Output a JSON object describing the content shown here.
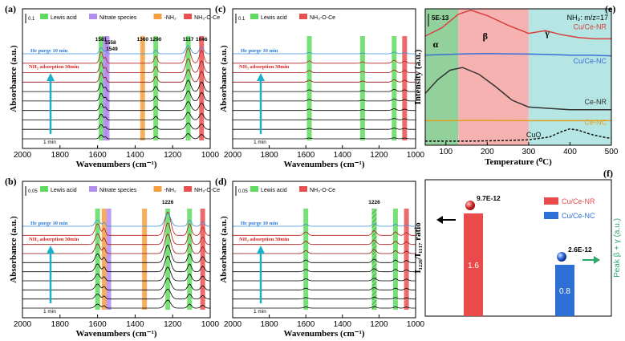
{
  "chart_data": [
    {
      "id": "a",
      "label": "(a)",
      "type": "line",
      "xlabel": "Wavenumbers (cm⁻¹)",
      "ylabel": "Absorbance (a.u.)",
      "xlim": [
        2000,
        1000
      ],
      "xticks": [
        "2000",
        "1800",
        "1600",
        "1400",
        "1200",
        "1000"
      ],
      "scale": "0.1",
      "legend": [
        {
          "name": "Lewis acid",
          "color": "#5fdc5f"
        },
        {
          "name": "Nitrate species",
          "color": "#b48cf0"
        },
        {
          "name": "-NH₂",
          "color": "#f5a040"
        },
        {
          "name": "NH₃-O-Ce",
          "color": "#e85050"
        }
      ],
      "bands": [
        {
          "x": 1581,
          "color": "#5fdc5f"
        },
        {
          "x": 1558,
          "color": "#b48cf0"
        },
        {
          "x": 1549,
          "color": "#b48cf0"
        },
        {
          "x": 1360,
          "color": "#f5a040"
        },
        {
          "x": 1290,
          "color": "#5fdc5f"
        },
        {
          "x": 1117,
          "color": "#5fdc5f"
        },
        {
          "x": 1046,
          "color": "#e85050"
        }
      ],
      "peak_labels": [
        "1581",
        "1558",
        "1549",
        "1360",
        "1290",
        "1117",
        "1046"
      ],
      "peaks": [
        {
          "x": 1581,
          "h": 1.0,
          "w": 12
        },
        {
          "x": 1558,
          "h": 0.5,
          "w": 8
        },
        {
          "x": 1290,
          "h": 0.6,
          "w": 12
        },
        {
          "x": 1117,
          "h": 1.3,
          "w": 18
        },
        {
          "x": 1046,
          "h": 1.1,
          "w": 16
        }
      ],
      "he_text": "He purge 10 min",
      "nh3_text": "NH₃ adsorption 30min",
      "time_text": "1 min",
      "n_curves": 10
    },
    {
      "id": "b",
      "label": "(b)",
      "type": "line",
      "xlabel": "Wavenumbers (cm⁻¹)",
      "ylabel": "Absorbance (a.u.)",
      "xlim": [
        2000,
        1000
      ],
      "xticks": [
        "2000",
        "1800",
        "1600",
        "1400",
        "1200",
        "1000"
      ],
      "scale": "0.05",
      "legend": [
        {
          "name": "Lewis acid",
          "color": "#5fdc5f"
        },
        {
          "name": "Nitrate species",
          "color": "#b48cf0"
        },
        {
          "name": "-NH₂",
          "color": "#f5a040"
        },
        {
          "name": "NH₃-O-Ce",
          "color": "#e85050"
        }
      ],
      "bands": [
        {
          "x": 1600,
          "color": "#5fdc5f"
        },
        {
          "x": 1565,
          "color": "#f5a040"
        },
        {
          "x": 1540,
          "color": "#b48cf0"
        },
        {
          "x": 1350,
          "color": "#f5a040"
        },
        {
          "x": 1226,
          "color": "#5fdc5f"
        },
        {
          "x": 1110,
          "color": "#5fdc5f"
        },
        {
          "x": 1040,
          "color": "#e85050"
        }
      ],
      "peak_labels": [
        "1226"
      ],
      "peaks": [
        {
          "x": 1600,
          "h": 1.0,
          "w": 18
        },
        {
          "x": 1565,
          "h": 0.6,
          "w": 10
        },
        {
          "x": 1226,
          "h": 2.0,
          "w": 22
        },
        {
          "x": 1110,
          "h": 1.0,
          "w": 14
        },
        {
          "x": 1040,
          "h": 0.7,
          "w": 14
        }
      ],
      "he_text": "He purge 10 min",
      "nh3_text": "NH₃ adsorption 30min",
      "time_text": "1 min",
      "n_curves": 10
    },
    {
      "id": "c",
      "label": "(c)",
      "type": "line",
      "xlabel": "Wavenumbers (cm⁻¹)",
      "ylabel": "Absorbance (a.u.)",
      "xlim": [
        2000,
        1000
      ],
      "xticks": [
        "2000",
        "1800",
        "1600",
        "1400",
        "1200",
        "1000"
      ],
      "scale": "0.1",
      "legend": [
        {
          "name": "Lewis acid",
          "color": "#5fdc5f"
        },
        {
          "name": "NH₃-O-Ce",
          "color": "#e85050"
        }
      ],
      "bands": [
        {
          "x": 1581,
          "color": "#5fdc5f"
        },
        {
          "x": 1290,
          "color": "#5fdc5f"
        },
        {
          "x": 1117,
          "color": "#5fdc5f"
        },
        {
          "x": 1060,
          "color": "#e85050"
        }
      ],
      "peak_labels": [],
      "peaks": [
        {
          "x": 1581,
          "h": 0.2,
          "w": 14
        },
        {
          "x": 1290,
          "h": 0.12,
          "w": 12
        },
        {
          "x": 1117,
          "h": 0.25,
          "w": 16
        },
        {
          "x": 1060,
          "h": 0.2,
          "w": 14
        }
      ],
      "he_text": "He purge 10 min",
      "nh3_text": "NH₃ adsorption 30min",
      "time_text": "1 min",
      "n_curves": 10
    },
    {
      "id": "d",
      "label": "(d)",
      "type": "line",
      "xlabel": "Wavenumbers (cm⁻¹)",
      "ylabel": "Absorbance (a.u.)",
      "xlim": [
        2000,
        1000
      ],
      "xticks": [
        "2000",
        "1800",
        "1600",
        "1400",
        "1200",
        "1000"
      ],
      "scale": "0.05",
      "legend": [
        {
          "name": "Lewis acid",
          "color": "#5fdc5f"
        },
        {
          "name": "NH₃-O-Ce",
          "color": "#e85050"
        }
      ],
      "bands": [
        {
          "x": 1600,
          "color": "#5fdc5f"
        },
        {
          "x": 1226,
          "color": "#5fdc5f"
        },
        {
          "x": 1110,
          "color": "#5fdc5f"
        },
        {
          "x": 1050,
          "color": "#e85050"
        }
      ],
      "peak_labels": [
        "1226"
      ],
      "peaks": [
        {
          "x": 1600,
          "h": 0.3,
          "w": 16
        },
        {
          "x": 1226,
          "h": 0.4,
          "w": 16
        },
        {
          "x": 1110,
          "h": 0.3,
          "w": 14
        },
        {
          "x": 1050,
          "h": 0.25,
          "w": 14
        }
      ],
      "he_text": "He purge 10 min",
      "nh3_text": "NH₃ adsorption 30min",
      "time_text": "1 min",
      "n_curves": 10
    },
    {
      "id": "e",
      "label": "(e)",
      "type": "line",
      "xlabel": "Temperature (⁰C)",
      "ylabel": "Intensity (a.u.)",
      "xlim": [
        50,
        500
      ],
      "xticks": [
        "100",
        "200",
        "300",
        "400",
        "500"
      ],
      "scale": "5E-13",
      "title": "NH₃: m/z=17",
      "regions": [
        {
          "name": "α",
          "from": 50,
          "to": 130,
          "color": "#7fc98a"
        },
        {
          "name": "β",
          "from": 130,
          "to": 300,
          "color": "#f4a3a3"
        },
        {
          "name": "γ",
          "from": 300,
          "to": 500,
          "color": "#a8e2de"
        }
      ],
      "series": [
        {
          "name": "Cu/Ce-NR",
          "color": "#d94040",
          "x": [
            50,
            90,
            130,
            160,
            200,
            250,
            300,
            340,
            380,
            420,
            460,
            500
          ],
          "y": [
            0.8,
            0.86,
            0.96,
            0.99,
            0.95,
            0.88,
            0.82,
            0.84,
            0.81,
            0.79,
            0.78,
            0.78
          ]
        },
        {
          "name": "Cu/Ce-NC",
          "color": "#3a6fd8",
          "x": [
            50,
            100,
            150,
            200,
            250,
            300,
            350,
            400,
            450,
            500
          ],
          "y": [
            0.66,
            0.665,
            0.67,
            0.672,
            0.67,
            0.668,
            0.665,
            0.66,
            0.66,
            0.655
          ]
        },
        {
          "name": "Ce-NR",
          "color": "#333333",
          "x": [
            50,
            80,
            110,
            140,
            180,
            220,
            260,
            300,
            350,
            400,
            450,
            500
          ],
          "y": [
            0.38,
            0.48,
            0.55,
            0.57,
            0.52,
            0.43,
            0.33,
            0.28,
            0.27,
            0.26,
            0.26,
            0.26
          ]
        },
        {
          "name": "Ce-NC",
          "color": "#e0a020",
          "x": [
            50,
            100,
            150,
            200,
            250,
            300,
            350,
            400,
            450,
            500
          ],
          "y": [
            0.18,
            0.18,
            0.182,
            0.182,
            0.181,
            0.18,
            0.18,
            0.18,
            0.18,
            0.18
          ]
        },
        {
          "name": "CuO",
          "color": "#111111",
          "dashed": true,
          "x": [
            50,
            150,
            250,
            300,
            350,
            380,
            400,
            420,
            450,
            480,
            500
          ],
          "y": [
            0.03,
            0.03,
            0.035,
            0.04,
            0.06,
            0.1,
            0.12,
            0.11,
            0.08,
            0.06,
            0.05
          ]
        }
      ]
    },
    {
      "id": "f",
      "label": "(f)",
      "type": "bar",
      "ylabel_left": "I₁₂₂₆/I₁₁₁₇ ratio",
      "ylabel_right": "Peak β + γ  (a.u.)",
      "categories": [
        "Cu/Ce-NR",
        "Cu/Ce-NC"
      ],
      "ratio_values": [
        1.6,
        0.8
      ],
      "ratio_labels": [
        "1.6",
        "0.8"
      ],
      "peak_values": [
        "9.7E-12",
        "2.6E-12"
      ],
      "colors": [
        "#e94a4a",
        "#2e6fd6"
      ]
    }
  ]
}
